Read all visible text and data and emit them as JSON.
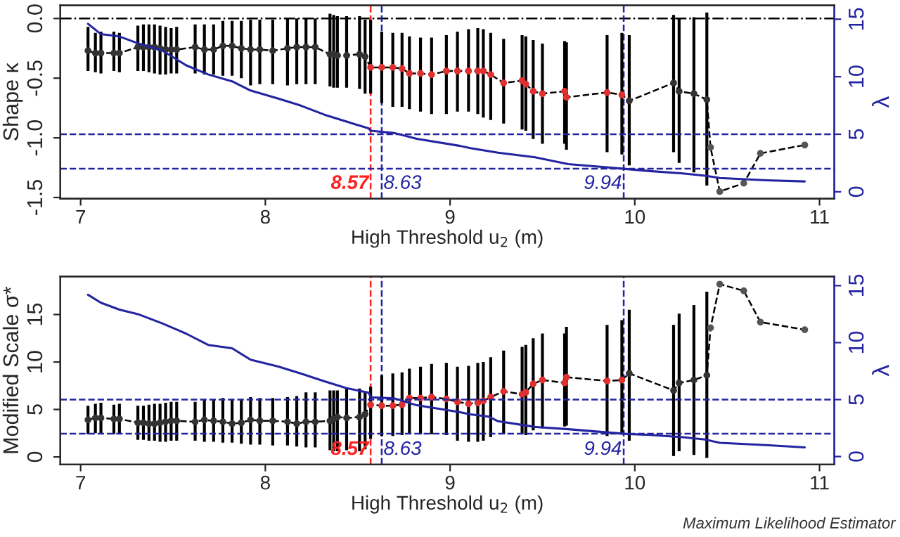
{
  "chart_data": [
    {
      "type": "line",
      "xlabel": "High Threshold u$_{2}$ (m)",
      "ylabel": "Shape κ",
      "y2label": "λ",
      "xlim": [
        6.89,
        11.08
      ],
      "xticks": [
        7,
        8,
        9,
        10,
        11
      ],
      "ylim": [
        -1.51,
        0.11
      ],
      "yticks": [
        {
          "value": -1.5,
          "label": "-1.5"
        },
        {
          "value": -1.0,
          "label": "-1.0"
        },
        {
          "value": -0.5,
          "label": "-0.5"
        },
        {
          "value": 0,
          "label": "0.0"
        }
      ],
      "y2lim": [
        -0.6,
        16.2
      ],
      "y2ticks": [
        0,
        5,
        10,
        15
      ],
      "series": [
        {
          "color": "#000000",
          "marker": "circle",
          "line_style": "dashed",
          "x": [
            7.04,
            7.08,
            7.11,
            7.18,
            7.21,
            7.31,
            7.34,
            7.37,
            7.4,
            7.43,
            7.46,
            7.49,
            7.52,
            7.62,
            7.67,
            7.72,
            7.77,
            7.82,
            7.87,
            7.92,
            7.97,
            8.04,
            8.12,
            8.17,
            8.22,
            8.27,
            8.35,
            8.37,
            8.39,
            8.44,
            8.51,
            8.54,
            8.57,
            8.63,
            8.69,
            8.74,
            8.78,
            8.84,
            8.9,
            8.98,
            9.04,
            9.1,
            9.15,
            9.18,
            9.22,
            9.29,
            9.39,
            9.41,
            9.45,
            9.5,
            9.62,
            9.63,
            9.85,
            9.93,
            9.97,
            10.21,
            10.24,
            10.32,
            10.39,
            10.41,
            10.46,
            10.59,
            10.68,
            10.92
          ],
          "values": [
            -0.27,
            -0.29,
            -0.29,
            -0.29,
            -0.29,
            -0.24,
            -0.24,
            -0.24,
            -0.24,
            -0.25,
            -0.26,
            -0.26,
            -0.26,
            -0.24,
            -0.26,
            -0.26,
            -0.23,
            -0.23,
            -0.25,
            -0.26,
            -0.26,
            -0.27,
            -0.25,
            -0.24,
            -0.24,
            -0.24,
            -0.3,
            -0.3,
            -0.31,
            -0.31,
            -0.3,
            -0.32,
            -0.41,
            -0.41,
            -0.41,
            -0.42,
            -0.46,
            -0.46,
            -0.47,
            -0.44,
            -0.44,
            -0.44,
            -0.44,
            -0.44,
            -0.47,
            -0.54,
            -0.52,
            -0.55,
            -0.61,
            -0.63,
            -0.61,
            -0.66,
            -0.62,
            -0.64,
            -0.69,
            -0.54,
            -0.61,
            -0.63,
            -0.68,
            -1.08,
            -1.45,
            -1.38,
            -1.13,
            -1.06
          ],
          "errors": [
            [
              -0.44,
              -0.07
            ],
            [
              -0.45,
              -0.12
            ],
            [
              -0.46,
              -0.11
            ],
            [
              -0.44,
              -0.11
            ],
            [
              -0.45,
              -0.12
            ],
            [
              -0.44,
              -0.06
            ],
            [
              -0.44,
              -0.05
            ],
            [
              -0.45,
              -0.05
            ],
            [
              -0.46,
              -0.05
            ],
            [
              -0.47,
              -0.06
            ],
            [
              -0.47,
              -0.07
            ],
            [
              -0.46,
              -0.08
            ],
            [
              -0.46,
              -0.07
            ],
            [
              -0.46,
              -0.05
            ],
            [
              -0.47,
              -0.05
            ],
            [
              -0.47,
              -0.05
            ],
            [
              -0.48,
              -0.02
            ],
            [
              -0.48,
              -0.02
            ],
            [
              -0.5,
              -0.02
            ],
            [
              -0.56,
              -0.01
            ],
            [
              -0.55,
              -0.01
            ],
            [
              -0.55,
              -0.01
            ],
            [
              -0.56,
              0.0
            ],
            [
              -0.55,
              0.0
            ],
            [
              -0.55,
              0.0
            ],
            [
              -0.55,
              0.0
            ],
            [
              -0.57,
              0.04
            ],
            [
              -0.58,
              0.03
            ],
            [
              -0.58,
              0.02
            ],
            [
              -0.58,
              0.02
            ],
            [
              -0.59,
              0.02
            ],
            [
              -0.63,
              -0.01
            ],
            [
              -0.63,
              -0.01
            ],
            [
              -0.71,
              -0.11
            ],
            [
              -0.74,
              -0.12
            ],
            [
              -0.74,
              -0.12
            ],
            [
              -0.76,
              -0.15
            ],
            [
              -0.78,
              -0.16
            ],
            [
              -0.8,
              -0.16
            ],
            [
              -0.8,
              -0.14
            ],
            [
              -0.78,
              -0.11
            ],
            [
              -0.78,
              -0.09
            ],
            [
              -0.8,
              -0.08
            ],
            [
              -0.83,
              -0.09
            ],
            [
              -0.85,
              -0.12
            ],
            [
              -0.88,
              -0.17
            ],
            [
              -0.93,
              -0.14
            ],
            [
              -0.94,
              -0.15
            ],
            [
              -1.01,
              -0.18
            ],
            [
              -1.05,
              -0.21
            ],
            [
              -1.05,
              -0.19
            ],
            [
              -1.1,
              -0.2
            ],
            [
              -1.12,
              -0.14
            ],
            [
              -1.14,
              -0.12
            ],
            [
              -1.23,
              -0.14
            ],
            [
              -1.12,
              0.03
            ],
            [
              -1.21,
              0.0
            ],
            [
              -1.29,
              0.01
            ],
            [
              -1.4,
              0.05
            ],
            null,
            null,
            null,
            null,
            null
          ],
          "colors": [
            "#333333",
            "#333333",
            "#333333",
            "#333333",
            "#333333",
            "#333333",
            "#333333",
            "#333333",
            "#333333",
            "#333333",
            "#333333",
            "#333333",
            "#333333",
            "#333333",
            "#333333",
            "#333333",
            "#333333",
            "#333333",
            "#333333",
            "#333333",
            "#333333",
            "#333333",
            "#333333",
            "#333333",
            "#333333",
            "#333333",
            "#333333",
            "#333333",
            "#333333",
            "#333333",
            "#333333",
            "#333333",
            "#e03030",
            "#e03030",
            "#e03030",
            "#e03030",
            "#e03030",
            "#e03030",
            "#e03030",
            "#e03030",
            "#e03030",
            "#e03030",
            "#e03030",
            "#e03030",
            "#e03030",
            "#e03030",
            "#e03030",
            "#e03030",
            "#e03030",
            "#e03030",
            "#e03030",
            "#e03030",
            "#e03030",
            "#e03030",
            "#333333",
            "#333333",
            "#333333",
            "#333333",
            "#333333",
            "#555555",
            "#555555",
            "#555555",
            "#555555",
            "#555555"
          ]
        },
        {
          "axis": "y2",
          "color": "#2424a0",
          "line_style": "solid",
          "x": [
            7.04,
            7.11,
            7.21,
            7.31,
            7.44,
            7.57,
            7.69,
            7.82,
            7.92,
            8.07,
            8.19,
            8.32,
            8.44,
            8.56,
            8.57,
            8.7,
            8.82,
            9.05,
            9.11,
            9.26,
            9.46,
            9.64,
            9.79,
            9.94,
            10.08,
            10.26,
            10.38,
            10.46,
            10.71,
            10.92
          ],
          "values": [
            14.6,
            13.7,
            13.5,
            12.9,
            12.3,
            11.0,
            10.2,
            9.6,
            8.8,
            8.1,
            7.5,
            6.7,
            6.1,
            5.5,
            5.3,
            5.1,
            4.6,
            4.0,
            3.8,
            3.4,
            3.0,
            2.4,
            2.2,
            2.0,
            1.8,
            1.6,
            1.4,
            1.2,
            1.0,
            0.9
          ]
        }
      ],
      "ref_lines": [
        {
          "axis": "y",
          "value": 0,
          "color": "#000000",
          "line_style": "dashdot"
        },
        {
          "axis": "x",
          "value": 8.57,
          "label": "8.57",
          "color": "#ff2020",
          "line_style": "dashed"
        },
        {
          "axis": "x",
          "value": 8.63,
          "label": "8.63",
          "color": "#2424a0",
          "line_style": "dashed"
        },
        {
          "axis": "x",
          "value": 9.94,
          "label": "9.94",
          "color": "#2424a0",
          "line_style": "dashed"
        },
        {
          "axis": "y2",
          "value": 5,
          "color": "#2424a0",
          "line_style": "dashed"
        },
        {
          "axis": "y2",
          "value": 2,
          "color": "#2424a0",
          "line_style": "dashed"
        }
      ]
    },
    {
      "type": "line",
      "xlabel": "High Threshold u$_{2}$ (m)",
      "ylabel": "Modified Scale σ*",
      "y2label": "λ",
      "xlim": [
        6.89,
        11.08
      ],
      "xticks": [
        7,
        8,
        9,
        10,
        11
      ],
      "ylim": [
        -0.8,
        19.0
      ],
      "yticks": [
        0,
        5,
        10,
        15
      ],
      "y2lim": [
        -0.7,
        15.8
      ],
      "y2ticks": [
        0,
        5,
        10,
        15
      ],
      "annotations": [
        "Maximum Likelihood Estimator"
      ],
      "series": [
        {
          "color": "#000000",
          "marker": "circle",
          "line_style": "dashed",
          "x": [
            7.04,
            7.08,
            7.11,
            7.18,
            7.21,
            7.31,
            7.34,
            7.37,
            7.4,
            7.43,
            7.46,
            7.49,
            7.52,
            7.62,
            7.67,
            7.72,
            7.77,
            7.82,
            7.87,
            7.92,
            7.97,
            8.04,
            8.12,
            8.17,
            8.22,
            8.27,
            8.35,
            8.37,
            8.39,
            8.44,
            8.51,
            8.54,
            8.57,
            8.63,
            8.69,
            8.74,
            8.78,
            8.84,
            8.9,
            8.98,
            9.04,
            9.1,
            9.15,
            9.18,
            9.22,
            9.29,
            9.39,
            9.41,
            9.45,
            9.5,
            9.62,
            9.63,
            9.85,
            9.93,
            9.97,
            10.21,
            10.24,
            10.32,
            10.39,
            10.41,
            10.46,
            10.59,
            10.68,
            10.92
          ],
          "values": [
            3.9,
            4.1,
            4.1,
            4.0,
            4.0,
            3.6,
            3.6,
            3.5,
            3.5,
            3.6,
            3.7,
            3.8,
            3.8,
            3.7,
            3.9,
            3.8,
            3.7,
            3.5,
            3.6,
            3.9,
            3.8,
            3.8,
            3.7,
            3.5,
            3.7,
            3.7,
            3.8,
            4.0,
            4.2,
            4.1,
            4.2,
            4.5,
            5.5,
            5.4,
            5.4,
            5.5,
            6.2,
            6.2,
            6.3,
            6.1,
            5.8,
            5.6,
            5.7,
            5.9,
            6.3,
            6.9,
            6.6,
            6.8,
            7.7,
            8.1,
            7.8,
            8.4,
            8.0,
            8.1,
            8.8,
            7.0,
            7.8,
            8.1,
            8.6,
            13.6,
            18.2,
            17.5,
            14.2,
            13.4
          ],
          "errors": [
            [
              2.4,
              5.4
            ],
            [
              2.5,
              5.6
            ],
            [
              2.5,
              5.7
            ],
            [
              2.4,
              5.5
            ],
            [
              2.4,
              5.6
            ],
            [
              1.8,
              5.4
            ],
            [
              1.8,
              5.4
            ],
            [
              1.7,
              5.5
            ],
            [
              1.7,
              5.6
            ],
            [
              1.6,
              5.6
            ],
            [
              1.6,
              5.7
            ],
            [
              1.7,
              5.8
            ],
            [
              1.7,
              5.8
            ],
            [
              1.7,
              5.8
            ],
            [
              1.6,
              6.1
            ],
            [
              1.6,
              6.0
            ],
            [
              1.5,
              6.2
            ],
            [
              1.5,
              6.1
            ],
            [
              1.4,
              6.1
            ],
            [
              1.3,
              6.3
            ],
            [
              1.3,
              6.2
            ],
            [
              1.2,
              6.2
            ],
            [
              1.2,
              6.3
            ],
            [
              1.1,
              6.4
            ],
            [
              1.0,
              6.8
            ],
            [
              1.0,
              6.8
            ],
            [
              0.7,
              7.0
            ],
            [
              0.6,
              7.0
            ],
            [
              0.6,
              7.0
            ],
            [
              0.7,
              7.2
            ],
            [
              0.6,
              7.2
            ],
            [
              0.8,
              6.8
            ],
            [
              1.9,
              7.4
            ],
            [
              2.2,
              8.6
            ],
            [
              2.2,
              8.8
            ],
            [
              2.3,
              8.9
            ],
            [
              2.4,
              9.3
            ],
            [
              2.4,
              9.5
            ],
            [
              2.4,
              9.8
            ],
            [
              2.3,
              9.9
            ],
            [
              1.7,
              9.5
            ],
            [
              1.6,
              9.6
            ],
            [
              1.6,
              9.9
            ],
            [
              1.7,
              10.0
            ],
            [
              2.1,
              10.5
            ],
            [
              2.4,
              11.2
            ],
            [
              2.4,
              11.6
            ],
            [
              2.3,
              11.8
            ],
            [
              2.8,
              12.5
            ],
            [
              3.0,
              13.0
            ],
            [
              3.2,
              13.0
            ],
            [
              3.3,
              13.7
            ],
            [
              2.2,
              13.9
            ],
            [
              2.4,
              14.4
            ],
            [
              1.7,
              15.5
            ],
            [
              0.1,
              13.9
            ],
            [
              0.6,
              15.1
            ],
            [
              0.2,
              16.0
            ],
            [
              -0.1,
              17.4
            ],
            null,
            null,
            null,
            null,
            null
          ],
          "colors": [
            "#333333",
            "#333333",
            "#333333",
            "#333333",
            "#333333",
            "#333333",
            "#333333",
            "#333333",
            "#333333",
            "#333333",
            "#333333",
            "#333333",
            "#333333",
            "#333333",
            "#333333",
            "#333333",
            "#333333",
            "#333333",
            "#333333",
            "#333333",
            "#333333",
            "#333333",
            "#333333",
            "#333333",
            "#333333",
            "#333333",
            "#333333",
            "#333333",
            "#333333",
            "#333333",
            "#333333",
            "#333333",
            "#e03030",
            "#e03030",
            "#e03030",
            "#e03030",
            "#e03030",
            "#e03030",
            "#e03030",
            "#e03030",
            "#e03030",
            "#e03030",
            "#e03030",
            "#e03030",
            "#e03030",
            "#e03030",
            "#e03030",
            "#e03030",
            "#e03030",
            "#e03030",
            "#e03030",
            "#e03030",
            "#e03030",
            "#e03030",
            "#333333",
            "#333333",
            "#333333",
            "#333333",
            "#333333",
            "#555555",
            "#555555",
            "#555555",
            "#555555",
            "#555555"
          ]
        },
        {
          "axis": "y2",
          "color": "#2424a0",
          "line_style": "solid",
          "x": [
            7.04,
            7.11,
            7.21,
            7.31,
            7.44,
            7.57,
            7.69,
            7.82,
            7.92,
            8.07,
            8.19,
            8.32,
            8.44,
            8.56,
            8.57,
            8.7,
            8.82,
            9.05,
            9.11,
            9.21,
            9.26,
            9.46,
            9.64,
            9.79,
            9.94,
            10.08,
            10.26,
            10.38,
            10.46,
            10.71,
            10.92
          ],
          "values": [
            14.2,
            13.5,
            12.9,
            12.5,
            11.7,
            10.8,
            9.8,
            9.5,
            8.5,
            7.9,
            7.3,
            6.6,
            6.0,
            5.6,
            5.2,
            5.1,
            4.5,
            3.9,
            3.7,
            3.5,
            3.1,
            2.6,
            2.4,
            2.2,
            2.0,
            1.9,
            1.7,
            1.5,
            1.2,
            1.0,
            0.8
          ]
        }
      ],
      "ref_lines": [
        {
          "axis": "x",
          "value": 8.57,
          "label": "8.57",
          "color": "#ff2020",
          "line_style": "dashed"
        },
        {
          "axis": "x",
          "value": 8.63,
          "label": "8.63",
          "color": "#2424a0",
          "line_style": "dashed"
        },
        {
          "axis": "x",
          "value": 9.94,
          "label": "9.94",
          "color": "#2424a0",
          "line_style": "dashed"
        },
        {
          "axis": "y2",
          "value": 5,
          "color": "#2424a0",
          "line_style": "dashed"
        },
        {
          "axis": "y2",
          "value": 2,
          "color": "#2424a0",
          "line_style": "dashed"
        }
      ]
    }
  ]
}
